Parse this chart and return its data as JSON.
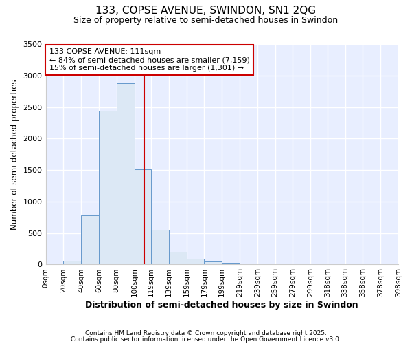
{
  "title1": "133, COPSE AVENUE, SWINDON, SN1 2QG",
  "title2": "Size of property relative to semi-detached houses in Swindon",
  "xlabel": "Distribution of semi-detached houses by size in Swindon",
  "ylabel": "Number of semi-detached properties",
  "bar_labels": [
    "0sqm",
    "20sqm",
    "40sqm",
    "60sqm",
    "80sqm",
    "100sqm",
    "119sqm",
    "139sqm",
    "159sqm",
    "179sqm",
    "199sqm",
    "219sqm",
    "239sqm",
    "259sqm",
    "279sqm",
    "299sqm",
    "318sqm",
    "338sqm",
    "358sqm",
    "378sqm",
    "398sqm"
  ],
  "bar_values": [
    20,
    60,
    780,
    2440,
    2880,
    1510,
    550,
    200,
    90,
    50,
    30,
    10,
    5,
    3,
    2,
    1,
    1,
    0,
    0,
    0,
    0
  ],
  "bar_color": "#dce8f5",
  "bar_edge_color": "#6699cc",
  "property_line_x": 111,
  "property_line_color": "#cc0000",
  "annotation_line1": "133 COPSE AVENUE: 111sqm",
  "annotation_line2": "← 84% of semi-detached houses are smaller (7,159)",
  "annotation_line3": "15% of semi-detached houses are larger (1,301) →",
  "annotation_box_color": "#cc0000",
  "ylim": [
    0,
    3500
  ],
  "yticks": [
    0,
    500,
    1000,
    1500,
    2000,
    2500,
    3000,
    3500
  ],
  "bg_color": "#ffffff",
  "plot_bg_color": "#e8eeff",
  "grid_color": "#ffffff",
  "footer1": "Contains HM Land Registry data © Crown copyright and database right 2025.",
  "footer2": "Contains public sector information licensed under the Open Government Licence v3.0.",
  "bin_edges": [
    0,
    20,
    40,
    60,
    80,
    100,
    119,
    139,
    159,
    179,
    199,
    219,
    239,
    259,
    279,
    299,
    318,
    338,
    358,
    378,
    398
  ]
}
